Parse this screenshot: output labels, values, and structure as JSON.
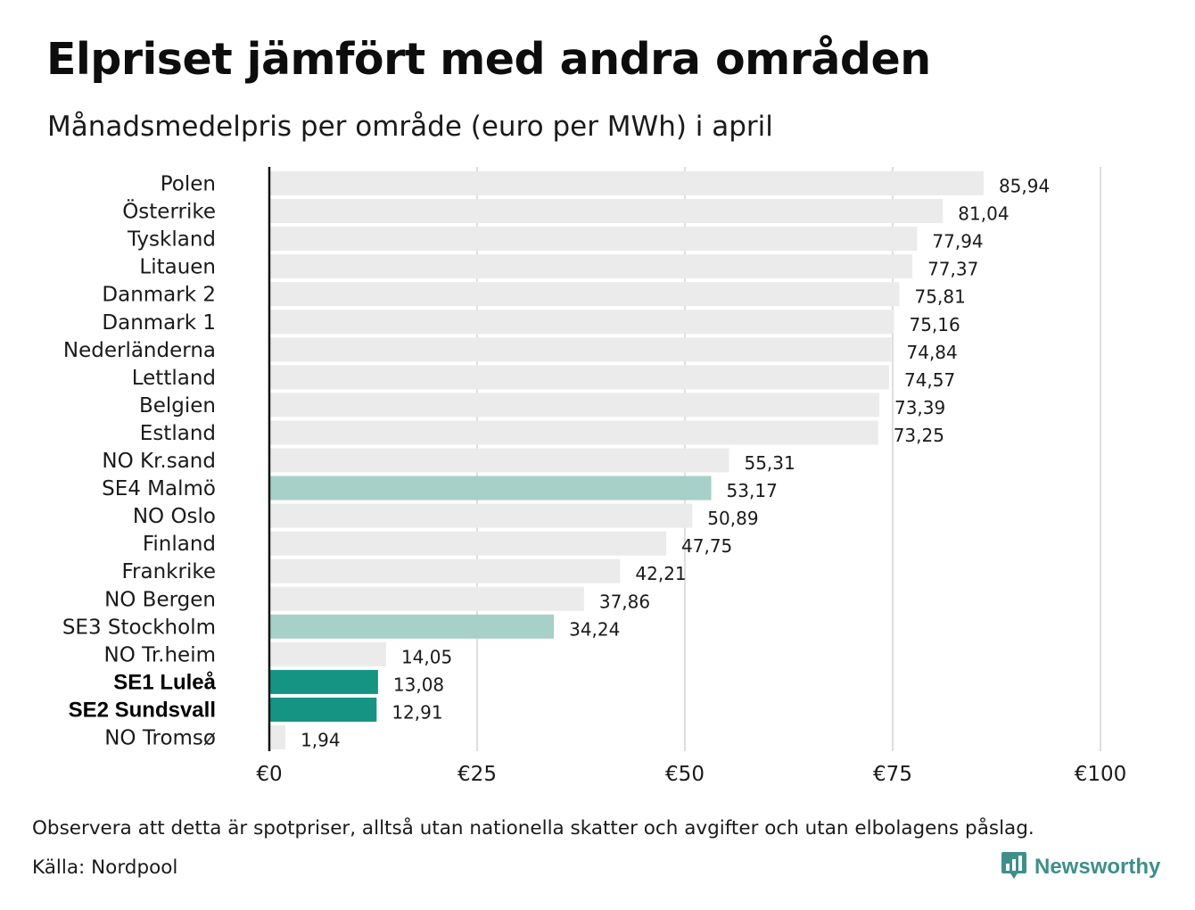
{
  "header": {
    "title": "Elpriset jämfört med andra områden",
    "subtitle": "Månadsmedelpris per område (euro per MWh) i april"
  },
  "footer": {
    "note": "Observera att detta är spotpriser, alltså utan nationella skatter och avgifter och utan elbolagens påslag.",
    "source": "Källa: Nordpool",
    "brand": "Newsworthy",
    "brand_icon": "bar-chart-speech-bubble-icon"
  },
  "colors": {
    "default_bar": "#ebebeb",
    "highlight_light": "#a6d0c8",
    "highlight_dark": "#159484",
    "gridline": "#d4d4d4",
    "axis": "#111111",
    "brand": "#3e8f8a"
  },
  "chart_data": {
    "type": "bar",
    "orientation": "horizontal",
    "title": "Elpriset jämfört med andra områden",
    "subtitle": "Månadsmedelpris per område (euro per MWh) i april",
    "categories": [
      "Polen",
      "Österrike",
      "Tyskland",
      "Litauen",
      "Danmark  2",
      "Danmark  1",
      "Nederländerna",
      "Lettland",
      "Belgien",
      "Estland",
      "NO Kr.sand",
      "SE4  Malmö",
      "NO Oslo",
      "Finland",
      "Frankrike",
      "NO Bergen",
      "SE3  Stockholm",
      "NO Tr.heim",
      "SE1 Luleå",
      "SE2 Sundsvall",
      "NO Tromsø"
    ],
    "values": [
      85.94,
      81.04,
      77.94,
      77.37,
      75.81,
      75.16,
      74.84,
      74.57,
      73.39,
      73.25,
      55.31,
      53.17,
      50.89,
      47.75,
      42.21,
      37.86,
      34.24,
      14.05,
      13.08,
      12.91,
      1.94
    ],
    "value_labels": [
      "85,94",
      "81,04",
      "77,94",
      "77,37",
      "75,81",
      "75,16",
      "74,84",
      "74,57",
      "73,39",
      "73,25",
      "55,31",
      "53,17",
      "50,89",
      "47,75",
      "42,21",
      "37,86",
      "34,24",
      "14,05",
      "13,08",
      "12,91",
      "1,94"
    ],
    "highlight": [
      "none",
      "none",
      "none",
      "none",
      "none",
      "none",
      "none",
      "none",
      "none",
      "none",
      "none",
      "light",
      "none",
      "none",
      "none",
      "none",
      "light",
      "none",
      "dark",
      "dark",
      "none"
    ],
    "bold_labels": [
      "SE1 Luleå",
      "SE2 Sundsvall"
    ],
    "x_ticks": [
      0,
      25,
      50,
      75,
      100
    ],
    "x_tick_labels": [
      "€0",
      "€25",
      "€50",
      "€75",
      "€100"
    ],
    "xlim": [
      0,
      100
    ],
    "grid": true,
    "legend": "none"
  }
}
